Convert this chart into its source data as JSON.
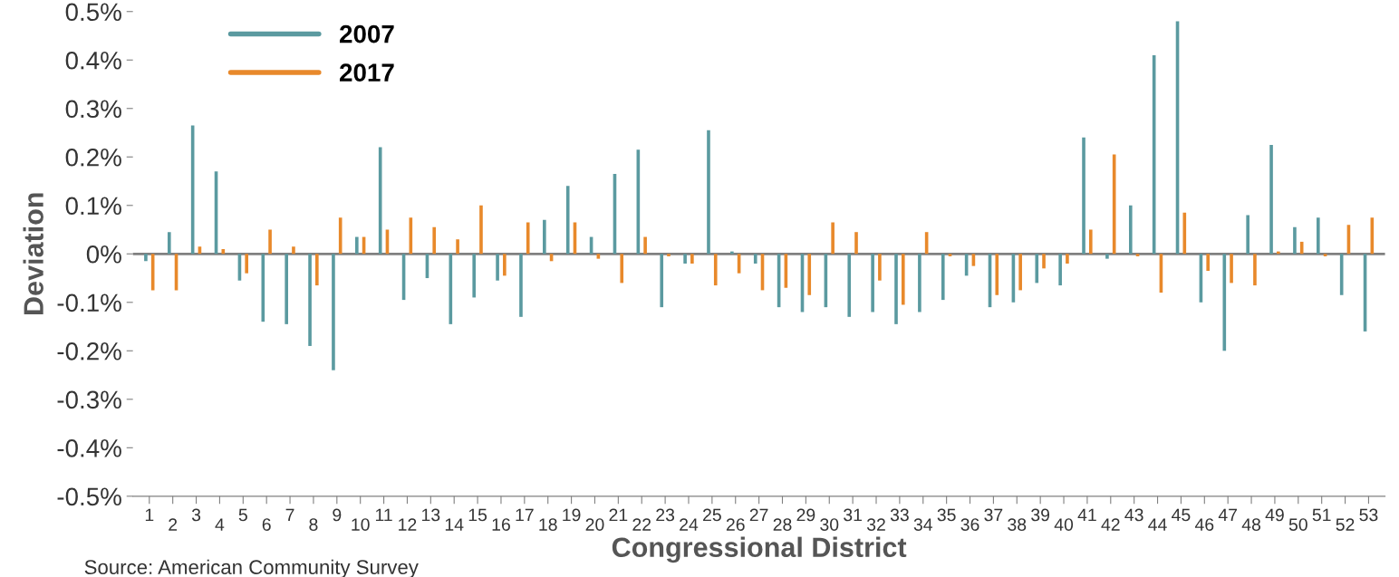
{
  "chart_data": {
    "type": "bar",
    "xlabel": "Congressional District",
    "ylabel": "Deviation",
    "categories": [
      "1",
      "2",
      "3",
      "4",
      "5",
      "6",
      "7",
      "8",
      "9",
      "10",
      "11",
      "12",
      "13",
      "14",
      "15",
      "16",
      "17",
      "18",
      "19",
      "20",
      "21",
      "22",
      "23",
      "24",
      "25",
      "26",
      "27",
      "28",
      "29",
      "30",
      "31",
      "32",
      "33",
      "34",
      "35",
      "36",
      "37",
      "38",
      "39",
      "40",
      "41",
      "42",
      "43",
      "44",
      "45",
      "46",
      "47",
      "48",
      "49",
      "50",
      "51",
      "52",
      "53"
    ],
    "series": [
      {
        "name": "2007",
        "color": "#5b9aa0",
        "values": [
          -0.015,
          0.045,
          0.265,
          0.17,
          -0.055,
          -0.14,
          -0.145,
          -0.19,
          -0.24,
          0.035,
          0.22,
          -0.095,
          -0.05,
          -0.145,
          -0.09,
          -0.055,
          -0.13,
          0.07,
          0.14,
          0.035,
          0.165,
          0.215,
          -0.11,
          -0.02,
          0.255,
          0.005,
          -0.02,
          -0.11,
          -0.12,
          -0.11,
          -0.13,
          -0.12,
          -0.145,
          -0.12,
          -0.095,
          -0.045,
          -0.11,
          -0.1,
          -0.06,
          -0.065,
          0.24,
          -0.01,
          0.1,
          0.41,
          0.48,
          -0.1,
          -0.2,
          0.08,
          0.225,
          0.055,
          0.075,
          -0.085,
          -0.16
        ]
      },
      {
        "name": "2017",
        "color": "#e8892b",
        "values": [
          -0.075,
          -0.075,
          0.015,
          0.01,
          -0.04,
          0.05,
          0.015,
          -0.065,
          0.075,
          0.035,
          0.05,
          0.075,
          0.055,
          0.03,
          0.1,
          -0.045,
          0.065,
          -0.015,
          0.065,
          -0.01,
          -0.06,
          0.035,
          -0.005,
          -0.02,
          -0.065,
          -0.04,
          -0.075,
          -0.07,
          -0.085,
          0.065,
          0.045,
          -0.055,
          -0.105,
          0.045,
          -0.005,
          -0.025,
          -0.085,
          -0.075,
          -0.03,
          -0.02,
          0.05,
          0.205,
          -0.005,
          -0.08,
          0.085,
          -0.035,
          -0.06,
          -0.065,
          0.005,
          0.025,
          -0.005,
          0.06,
          0.075
        ]
      }
    ],
    "ylim": [
      -0.5,
      0.5
    ],
    "yticks": [
      {
        "value": -0.5,
        "label": "-0.5%"
      },
      {
        "value": -0.4,
        "label": "-0.4%"
      },
      {
        "value": -0.3,
        "label": "-0.3%"
      },
      {
        "value": -0.2,
        "label": "-0.2%"
      },
      {
        "value": -0.1,
        "label": "-0.1%"
      },
      {
        "value": 0,
        "label": "0%"
      },
      {
        "value": 0.1,
        "label": "0.1%"
      },
      {
        "value": 0.2,
        "label": "0.2%"
      },
      {
        "value": 0.3,
        "label": "0.3%"
      },
      {
        "value": 0.4,
        "label": "0.4%"
      },
      {
        "value": 0.5,
        "label": "0.5%"
      }
    ],
    "ref_lines": [
      {
        "axis": "y",
        "value": 0,
        "color": "#808080"
      }
    ],
    "legend": "top left",
    "grid": false,
    "annotations": [
      "Source: American Community Survey"
    ]
  }
}
